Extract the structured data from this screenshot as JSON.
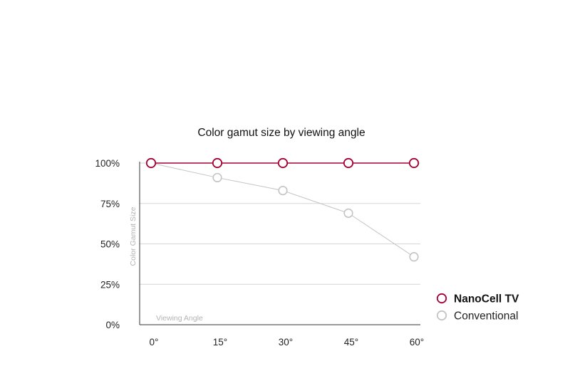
{
  "chart_data": {
    "type": "line",
    "title": "Color gamut size by viewing angle",
    "xlabel": "Viewing Angle",
    "ylabel": "Color Gamut Size",
    "categories": [
      "0°",
      "15°",
      "30°",
      "45°",
      "60°"
    ],
    "y_ticks": [
      "0%",
      "25%",
      "50%",
      "75%",
      "100%"
    ],
    "ylim": [
      0,
      100
    ],
    "grid": true,
    "legend_position": "right",
    "series": [
      {
        "name": "NanoCell TV",
        "color": "#a50034",
        "values": [
          100,
          100,
          100,
          100,
          100
        ]
      },
      {
        "name": "Conventional",
        "color": "#c4c4c4",
        "values": [
          100,
          91,
          83,
          69,
          42
        ]
      }
    ]
  }
}
